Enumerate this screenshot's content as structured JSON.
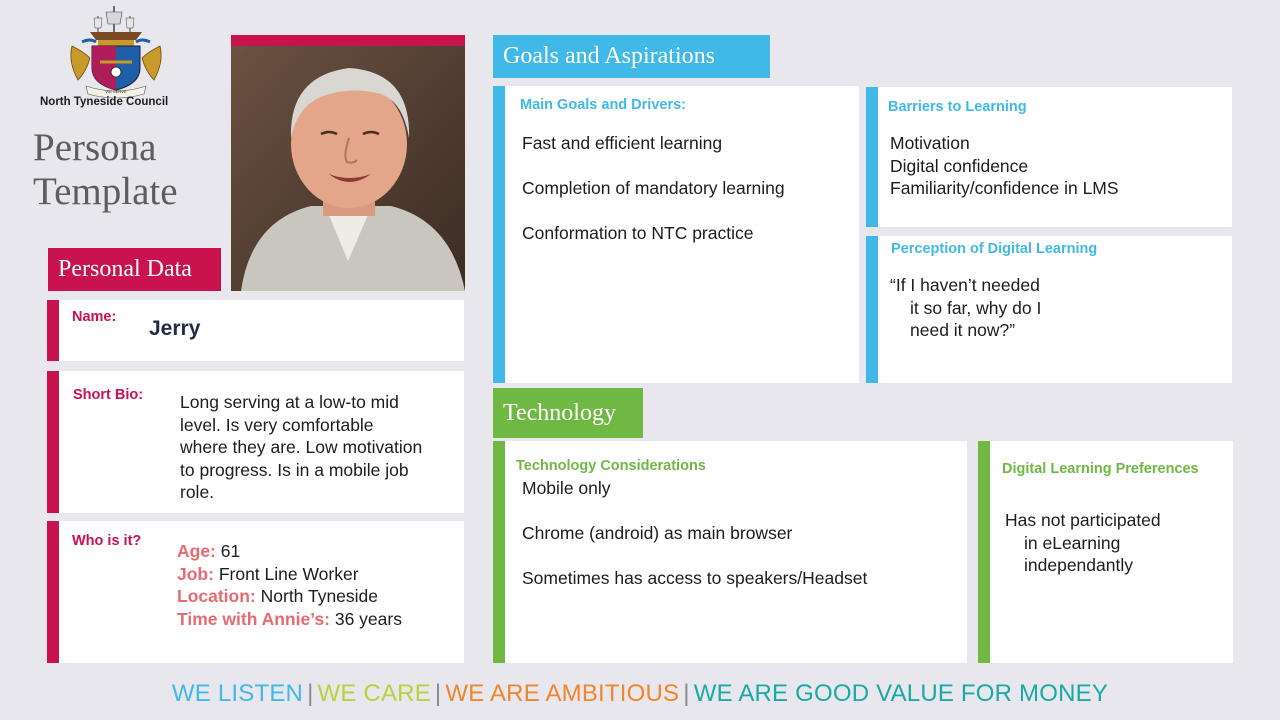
{
  "logo": {
    "org_name": "North Tyneside Council",
    "motto": "WE SERVE"
  },
  "title": {
    "line1": "Persona",
    "line2": "Template"
  },
  "sections": {
    "personal_data": "Personal Data",
    "goals": "Goals and Aspirations",
    "technology": "Technology"
  },
  "personal": {
    "name_label": "Name:",
    "name_value": "Jerry",
    "bio_label": "Short Bio:",
    "bio_lines": [
      "Long serving at a low-to mid",
      "level. Is very comfortable",
      "where they are. Low motivation",
      "to progress. Is in a mobile job",
      "role."
    ],
    "who_label": "Who is it?",
    "age_key": "Age:",
    "age_value": "61",
    "job_key": "Job:",
    "job_value": "Front Line Worker",
    "location_key": "Location:",
    "location_value": "North Tyneside",
    "time_key": "Time with Annie’s:",
    "time_value": "36 years"
  },
  "goals": {
    "main_label": "Main Goals and Drivers:",
    "main_items": [
      "Fast and efficient learning",
      "Completion of mandatory learning",
      "Conformation to NTC practice"
    ],
    "barriers_label": "Barriers to Learning",
    "barriers_items": [
      "Motivation",
      "Digital confidence",
      "Familiarity/confidence in LMS"
    ],
    "perception_label": "Perception of Digital Learning",
    "perception_lines": [
      "“If I haven’t needed",
      "it so far, why do I",
      "need it now?”"
    ]
  },
  "technology": {
    "considerations_label": "Technology Considerations",
    "considerations_items": [
      "Mobile only",
      "Chrome (android) as main browser",
      "Sometimes has access to speakers/Headset"
    ],
    "prefs_label": "Digital Learning Preferences",
    "prefs_lines": [
      "Has not participated",
      "in eLearning",
      "independantly"
    ]
  },
  "footer": {
    "v1": "WE LISTEN",
    "v2": "WE CARE",
    "v3": "WE ARE AMBITIOUS",
    "v4": "WE ARE GOOD VALUE FOR MONEY",
    "sep": "|",
    "colors": {
      "v1": "#40b9e9",
      "v2": "#b8d13c",
      "v3": "#f0852d",
      "v4": "#1aa9a4"
    }
  },
  "colors": {
    "pink": "#c8134e",
    "blue": "#40b9e9",
    "green": "#6fb844",
    "key_text": "#e66b71"
  }
}
